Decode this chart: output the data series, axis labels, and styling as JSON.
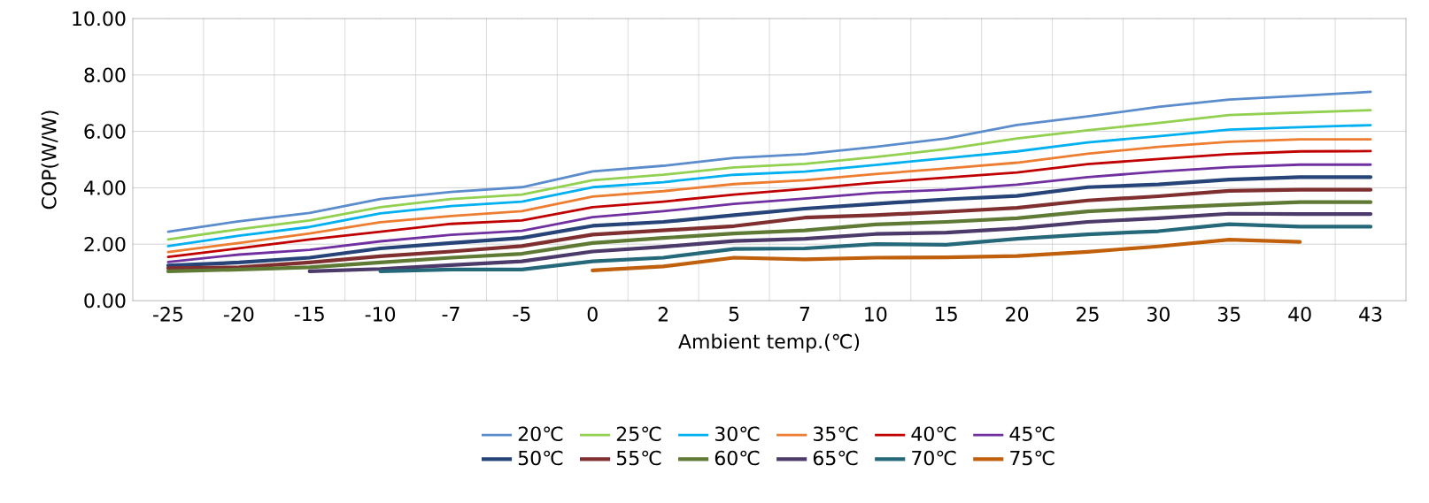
{
  "chart_data": {
    "type": "line",
    "xlabel": "Ambient temp.(℃)",
    "ylabel": "COP(W/W)",
    "categories": [
      "-25",
      "-20",
      "-15",
      "-10",
      "-7",
      "-5",
      "0",
      "2",
      "5",
      "7",
      "10",
      "15",
      "20",
      "25",
      "30",
      "35",
      "40",
      "43"
    ],
    "ylim": [
      0,
      10
    ],
    "yticks": [
      {
        "value": 0,
        "label": "0.00"
      },
      {
        "value": 2,
        "label": "2.00"
      },
      {
        "value": 4,
        "label": "4.00"
      },
      {
        "value": 6,
        "label": "6.00"
      },
      {
        "value": 8,
        "label": "8.00"
      },
      {
        "value": 10,
        "label": "10.00"
      }
    ],
    "grid": true,
    "legend": "bottom",
    "marker": "none",
    "line_style": "solid",
    "series": [
      {
        "name": "20℃",
        "color": "#5b8ccc",
        "values": [
          2.44,
          2.81,
          3.11,
          3.6,
          3.85,
          4.02,
          4.58,
          4.78,
          5.06,
          5.19,
          5.45,
          5.75,
          6.23,
          6.53,
          6.87,
          7.13,
          7.26,
          7.4
        ]
      },
      {
        "name": "25℃",
        "color": "#92d050",
        "values": [
          2.17,
          2.53,
          2.84,
          3.31,
          3.6,
          3.76,
          4.27,
          4.46,
          4.72,
          4.85,
          5.09,
          5.37,
          5.75,
          6.04,
          6.3,
          6.58,
          6.67,
          6.75
        ]
      },
      {
        "name": "30℃",
        "color": "#00b0f0",
        "values": [
          1.93,
          2.3,
          2.61,
          3.09,
          3.35,
          3.51,
          4.02,
          4.2,
          4.46,
          4.57,
          4.81,
          5.05,
          5.29,
          5.61,
          5.83,
          6.06,
          6.15,
          6.22
        ]
      },
      {
        "name": "35℃",
        "color": "#ed7d31",
        "values": [
          1.72,
          2.04,
          2.38,
          2.78,
          3.0,
          3.17,
          3.69,
          3.88,
          4.13,
          4.27,
          4.49,
          4.68,
          4.89,
          5.21,
          5.45,
          5.63,
          5.72,
          5.72
        ]
      },
      {
        "name": "40℃",
        "color": "#c00000",
        "values": [
          1.55,
          1.85,
          2.17,
          2.44,
          2.72,
          2.84,
          3.31,
          3.51,
          3.76,
          3.96,
          4.18,
          4.36,
          4.54,
          4.84,
          5.02,
          5.19,
          5.29,
          5.3
        ]
      },
      {
        "name": "45℃",
        "color": "#7030a0",
        "values": [
          1.37,
          1.63,
          1.8,
          2.1,
          2.33,
          2.47,
          2.96,
          3.17,
          3.43,
          3.62,
          3.82,
          3.93,
          4.11,
          4.38,
          4.57,
          4.73,
          4.82,
          4.82
        ]
      },
      {
        "name": "50℃",
        "color": "#264478",
        "values": [
          1.24,
          1.35,
          1.52,
          1.85,
          2.04,
          2.22,
          2.65,
          2.79,
          3.03,
          3.26,
          3.43,
          3.59,
          3.71,
          4.02,
          4.12,
          4.29,
          4.38,
          4.38
        ]
      },
      {
        "name": "55℃",
        "color": "#7f2f2f",
        "values": [
          1.15,
          1.18,
          1.35,
          1.57,
          1.74,
          1.93,
          2.34,
          2.49,
          2.64,
          2.94,
          3.03,
          3.15,
          3.29,
          3.55,
          3.7,
          3.89,
          3.93,
          3.93
        ]
      },
      {
        "name": "60℃",
        "color": "#5f7a35",
        "values": [
          1.04,
          1.1,
          1.18,
          1.35,
          1.52,
          1.66,
          2.04,
          2.22,
          2.38,
          2.49,
          2.7,
          2.79,
          2.92,
          3.16,
          3.29,
          3.4,
          3.49,
          3.49
        ]
      },
      {
        "name": "65℃",
        "color": "#4b3a6a",
        "values": [
          null,
          null,
          1.04,
          1.12,
          1.26,
          1.39,
          1.74,
          1.91,
          2.11,
          2.19,
          2.36,
          2.41,
          2.56,
          2.79,
          2.92,
          3.08,
          3.07,
          3.07
        ]
      },
      {
        "name": "70℃",
        "color": "#24687a",
        "values": [
          null,
          null,
          null,
          1.04,
          1.1,
          1.1,
          1.39,
          1.52,
          1.83,
          1.85,
          2.0,
          1.98,
          2.19,
          2.35,
          2.46,
          2.71,
          2.62,
          2.62
        ]
      },
      {
        "name": "75℃",
        "color": "#c0600c",
        "values": [
          null,
          null,
          null,
          null,
          null,
          null,
          1.07,
          1.21,
          1.52,
          1.46,
          1.52,
          1.53,
          1.58,
          1.73,
          1.92,
          2.16,
          2.08,
          null
        ]
      }
    ]
  }
}
